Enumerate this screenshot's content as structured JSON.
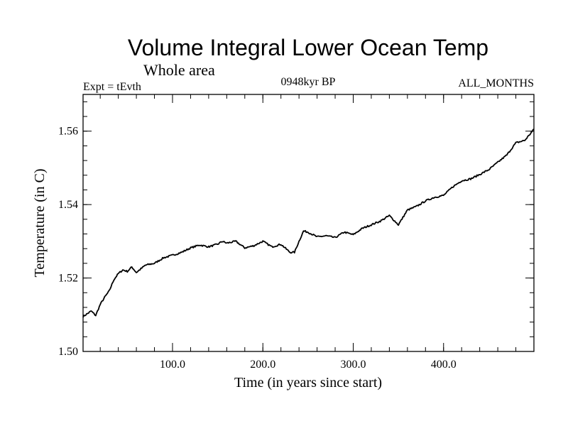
{
  "chart_data": {
    "type": "line",
    "title": "Volume Integral Lower Ocean Temp",
    "subtitle_left": "Whole area",
    "label_left": "Expt = tEvth",
    "label_center": "0948kyr BP",
    "label_right": "ALL_MONTHS",
    "xlabel": "Time (in years since start)",
    "ylabel": "Temperature (in C)",
    "xlim": [
      1,
      500
    ],
    "ylim": [
      1.5,
      1.57
    ],
    "xticks": [
      100,
      200,
      300,
      400
    ],
    "xtick_labels": [
      "100.0",
      "200.0",
      "300.0",
      "400.0"
    ],
    "yticks": [
      1.5,
      1.52,
      1.54,
      1.56
    ],
    "ytick_labels": [
      "1.50",
      "1.52",
      "1.54",
      "1.56"
    ],
    "x_minor_step": 20,
    "y_minor_step": 0.004,
    "grid": false,
    "series": [
      {
        "name": "Volume Integral Lower Ocean Temp",
        "color": "#000000",
        "x": [
          1,
          10,
          15,
          20,
          25,
          30,
          35,
          40,
          45,
          50,
          55,
          60,
          70,
          80,
          90,
          100,
          110,
          120,
          130,
          140,
          150,
          155,
          160,
          170,
          180,
          190,
          200,
          210,
          220,
          230,
          235,
          240,
          245,
          250,
          260,
          270,
          280,
          290,
          300,
          310,
          320,
          330,
          340,
          350,
          360,
          370,
          380,
          390,
          400,
          410,
          420,
          430,
          440,
          450,
          460,
          470,
          480,
          490,
          500
        ],
        "y": [
          1.5095,
          1.511,
          1.5098,
          1.5128,
          1.5148,
          1.5165,
          1.5195,
          1.5212,
          1.5222,
          1.5218,
          1.523,
          1.5215,
          1.5235,
          1.524,
          1.5255,
          1.5262,
          1.527,
          1.5282,
          1.529,
          1.5285,
          1.5292,
          1.53,
          1.5295,
          1.53,
          1.5282,
          1.5288,
          1.53,
          1.5285,
          1.5292,
          1.527,
          1.527,
          1.53,
          1.5328,
          1.5325,
          1.5312,
          1.5315,
          1.531,
          1.5325,
          1.5318,
          1.5335,
          1.5345,
          1.5355,
          1.537,
          1.5345,
          1.5385,
          1.5395,
          1.541,
          1.542,
          1.5425,
          1.5448,
          1.5465,
          1.547,
          1.5482,
          1.5495,
          1.5515,
          1.5535,
          1.5568,
          1.5575,
          1.5605
        ]
      }
    ]
  }
}
